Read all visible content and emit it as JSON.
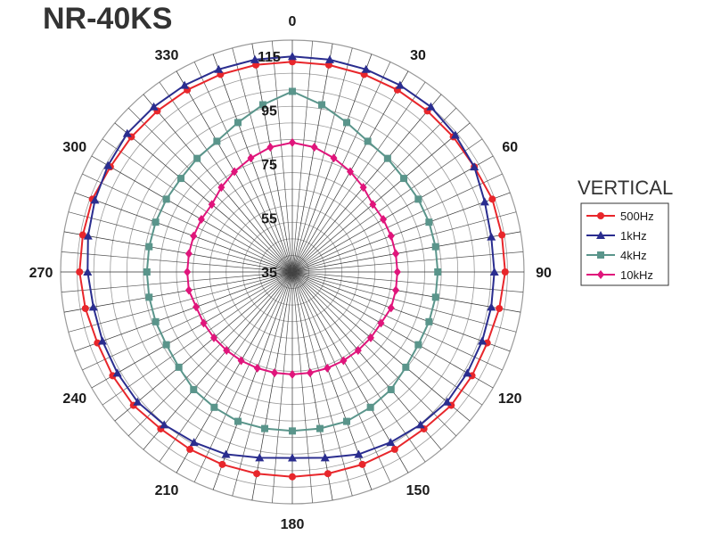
{
  "chart_data": {
    "type": "polar-line",
    "title": "NR-40KS",
    "legend_title": "VERTICAL",
    "legend_position": "right",
    "grid": true,
    "radial_range": [
      35,
      115
    ],
    "radial_ticks": [
      35,
      55,
      75,
      95,
      115
    ],
    "angle_labels": [
      0,
      30,
      60,
      90,
      120,
      150,
      180,
      210,
      240,
      270,
      300,
      330
    ],
    "angle_step": 10,
    "series": [
      {
        "name": "500Hz",
        "color": "#e8262b",
        "marker": "circle",
        "angles": [
          0,
          10,
          20,
          30,
          40,
          50,
          60,
          70,
          80,
          90,
          100,
          110,
          120,
          130,
          140,
          150,
          160,
          170,
          180,
          190,
          200,
          210,
          220,
          230,
          240,
          250,
          260,
          270,
          280,
          290,
          300,
          310,
          320,
          330,
          340,
          350
        ],
        "values": [
          113,
          113,
          113,
          113,
          113,
          113,
          113,
          114,
          114,
          114,
          113,
          112,
          112,
          112,
          111,
          111,
          111,
          111,
          111,
          111,
          111,
          111,
          111,
          112,
          112,
          112,
          113,
          114,
          114,
          114,
          113,
          113,
          113,
          113,
          113,
          113
        ]
      },
      {
        "name": "1kHz",
        "color": "#2a2d8f",
        "marker": "triangle",
        "angles": [
          0,
          10,
          20,
          30,
          40,
          50,
          60,
          70,
          80,
          90,
          100,
          110,
          120,
          130,
          140,
          150,
          160,
          170,
          180,
          190,
          200,
          210,
          220,
          230,
          240,
          250,
          260,
          270,
          280,
          290,
          300,
          310,
          320,
          330,
          340,
          350
        ],
        "values": [
          115,
          115,
          115,
          115,
          115,
          114,
          113,
          111,
          110,
          110,
          110,
          110,
          110,
          110,
          109,
          108,
          107,
          105,
          104,
          105,
          107,
          108,
          109,
          110,
          110,
          110,
          110,
          111,
          112,
          113,
          114,
          115,
          115,
          115,
          115,
          115
        ]
      },
      {
        "name": "4kHz",
        "color": "#5a958b",
        "marker": "square",
        "angles": [
          0,
          10,
          20,
          30,
          40,
          50,
          60,
          70,
          80,
          90,
          100,
          110,
          120,
          130,
          140,
          150,
          160,
          170,
          180,
          190,
          200,
          210,
          220,
          230,
          240,
          250,
          260,
          270,
          280,
          290,
          300,
          310,
          320,
          330,
          340,
          350
        ],
        "values": [
          102,
          98,
          94,
          91,
          90,
          89,
          89,
          89,
          89,
          89,
          89,
          89,
          89,
          90,
          92,
          93,
          94,
          94,
          94,
          94,
          94,
          93,
          92,
          90,
          89,
          89,
          89,
          89,
          89,
          89,
          89,
          89,
          90,
          91,
          94,
          98
        ]
      },
      {
        "name": "10kHz",
        "color": "#e0157b",
        "marker": "diamond",
        "angles": [
          0,
          10,
          20,
          30,
          40,
          50,
          60,
          70,
          80,
          90,
          100,
          110,
          120,
          130,
          140,
          150,
          160,
          170,
          180,
          190,
          200,
          210,
          220,
          230,
          240,
          250,
          260,
          270,
          280,
          290,
          300,
          310,
          320,
          330,
          340,
          350
        ],
        "values": [
          83,
          82,
          80,
          78,
          76,
          74,
          74,
          74,
          74,
          74,
          74,
          74,
          73,
          73,
          73,
          73,
          73,
          73,
          73,
          73,
          73,
          73,
          73,
          73,
          73,
          73,
          74,
          74,
          74,
          74,
          74,
          74,
          76,
          78,
          80,
          82
        ]
      }
    ]
  }
}
